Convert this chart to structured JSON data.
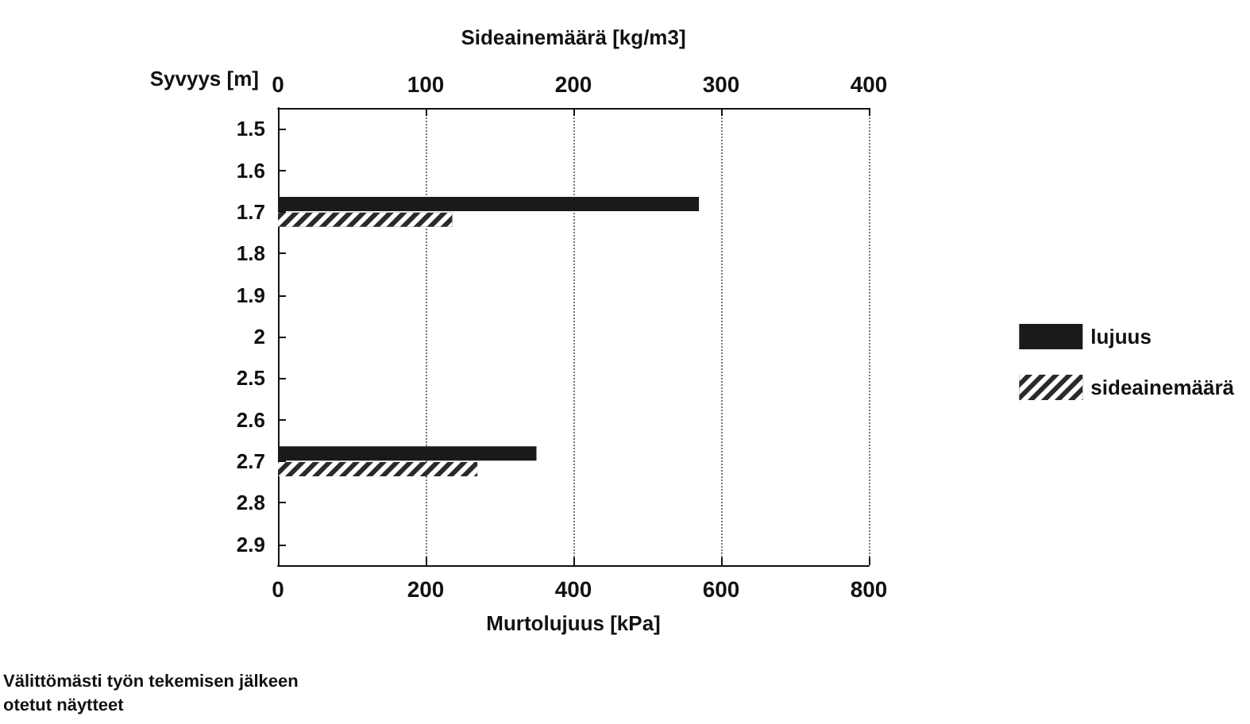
{
  "chart_data": {
    "type": "bar",
    "orientation": "horizontal",
    "ylabel": "Syvyys [m]",
    "xlabel": "Murtolujuus [kPa]",
    "x2label": "Sideainemäärä [kg/m3]",
    "categories": [
      "1.5",
      "1.6",
      "1.7",
      "1.8",
      "1.9",
      "2",
      "2.5",
      "2.6",
      "2.7",
      "2.8",
      "2.9"
    ],
    "series": [
      {
        "name": "lujuus",
        "color": "#1a1a1a",
        "values": [
          null,
          null,
          570,
          null,
          null,
          null,
          null,
          null,
          350,
          null,
          null
        ]
      },
      {
        "name": "sideainemäärä",
        "color": "#2a2a2a",
        "axis": "x2",
        "values": [
          null,
          null,
          118,
          null,
          null,
          null,
          null,
          null,
          135,
          null,
          null
        ]
      }
    ],
    "xlim": [
      0,
      800
    ],
    "xticks": [
      0,
      200,
      400,
      600,
      800
    ],
    "x2lim": [
      0,
      400
    ],
    "x2ticks": [
      0,
      100,
      200,
      300,
      400
    ],
    "grid": "x",
    "legend": "right",
    "annotations": [
      "Välittömästi työn tekemisen jälkeen\notetut näytteet"
    ]
  }
}
